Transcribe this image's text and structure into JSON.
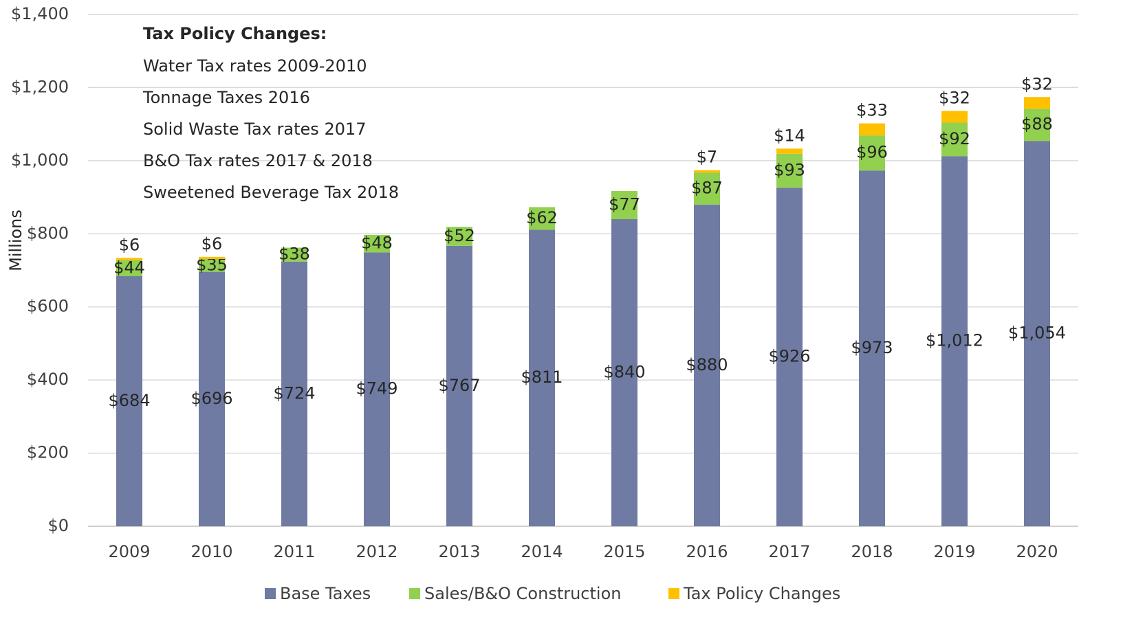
{
  "chart_data": {
    "type": "stacked_bar",
    "y_label": "Millions",
    "categories": [
      "2009",
      "2010",
      "2011",
      "2012",
      "2013",
      "2014",
      "2015",
      "2016",
      "2017",
      "2018",
      "2019",
      "2020"
    ],
    "series": [
      {
        "name": "Base Taxes",
        "color": "#6f7ba3",
        "values": [
          684,
          696,
          724,
          749,
          767,
          811,
          840,
          880,
          926,
          973,
          1012,
          1054
        ],
        "value_labels": [
          "$684",
          "$696",
          "$724",
          "$749",
          "$767",
          "$811",
          "$840",
          "$880",
          "$926",
          "$973",
          "$1,012",
          "$1,054"
        ]
      },
      {
        "name": "Sales/B&O Construction",
        "color": "#92d050",
        "values": [
          44,
          35,
          38,
          48,
          52,
          62,
          77,
          87,
          93,
          96,
          92,
          88
        ],
        "value_labels": [
          "$44",
          "$35",
          "$38",
          "$48",
          "$52",
          "$62",
          "$77",
          "$87",
          "$93",
          "$96",
          "$92",
          "$88"
        ]
      },
      {
        "name": "Tax Policy Changes",
        "color": "#ffc000",
        "values": [
          6,
          6,
          null,
          null,
          null,
          null,
          null,
          7,
          14,
          33,
          32,
          32
        ],
        "value_labels": [
          "$6",
          "$6",
          null,
          null,
          null,
          null,
          null,
          "$7",
          "$14",
          "$33",
          "$32",
          "$32"
        ]
      }
    ],
    "ylim": [
      0,
      1400
    ],
    "yticks": [
      {
        "value": 0,
        "label": "$0"
      },
      {
        "value": 200,
        "label": "$200"
      },
      {
        "value": 400,
        "label": "$400"
      },
      {
        "value": 600,
        "label": "$600"
      },
      {
        "value": 800,
        "label": "$800"
      },
      {
        "value": 1000,
        "label": "$1,000"
      },
      {
        "value": 1200,
        "label": "$1,200"
      },
      {
        "value": 1400,
        "label": "$1,400"
      }
    ],
    "grid": true,
    "legend": "bottom",
    "annotation": {
      "title": "Tax Policy Changes:",
      "lines": [
        "Water Tax rates 2009-2010",
        "Tonnage Taxes 2016",
        "Solid Waste Tax rates 2017",
        "B&O Tax rates 2017 & 2018",
        "Sweetened Beverage Tax 2018"
      ]
    }
  }
}
